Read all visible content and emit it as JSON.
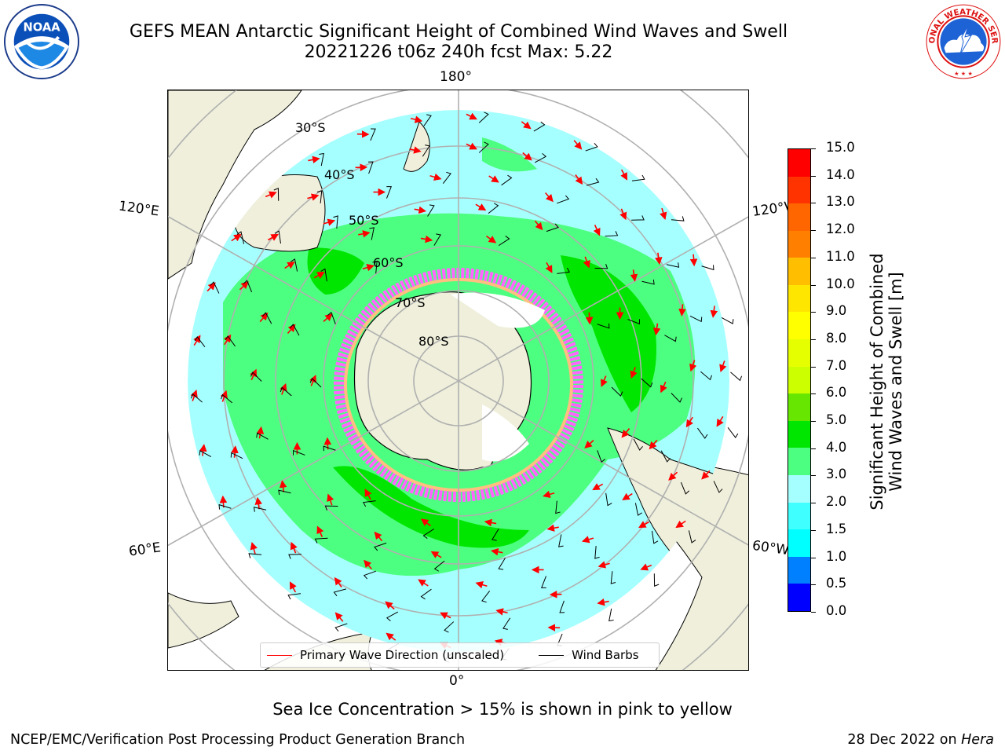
{
  "header": {
    "title_line1": "GEFS MEAN Antarctic Significant Height of Combined Wind Waves and Swell",
    "title_line2": "20221226 t06z 240h fcst   Max: 5.22"
  },
  "logos": {
    "left": {
      "name": "noaa-logo",
      "text": "NOAA",
      "ring_text": "NATIONAL OCEANIC AND ATMOSPHERIC ADMINISTRATION · U.S. DEPARTMENT OF COMMERCE"
    },
    "right": {
      "name": "nws-logo",
      "ring_text": "NATIONAL WEATHER SERVICE"
    }
  },
  "map": {
    "projection": "south-polar-stereographic",
    "longitude_labels": {
      "top": "180°",
      "bottom": "0°",
      "upper_left": "120°E",
      "upper_right": "120°W",
      "lower_left": "60°E",
      "lower_right": "60°W"
    },
    "latitude_labels": [
      "30°S",
      "40°S",
      "50°S",
      "60°S",
      "70°S",
      "80°S"
    ],
    "colors": {
      "land": "#efefdb",
      "ocean_low": "#a6ffff",
      "ocean_mid": "#4dff80",
      "ocean_high": "#00e600",
      "sea_ice": "#ff66ff",
      "grid": "#b0b0b0",
      "arrows": "#ff0000",
      "barbs": "#000000"
    }
  },
  "legend": {
    "items": [
      {
        "label": "Primary Wave Direction (unscaled)",
        "color": "#ff0000"
      },
      {
        "label": "Wind Barbs",
        "color": "#000000"
      }
    ]
  },
  "colorbar": {
    "label_line1": "Significant Height of Combined",
    "label_line2": "Wind Waves and Swell [m]",
    "ticks": [
      "0.0",
      "0.5",
      "1.0",
      "1.5",
      "2.0",
      "3.0",
      "4.0",
      "5.0",
      "6.0",
      "7.0",
      "8.0",
      "9.0",
      "10.0",
      "11.0",
      "12.0",
      "13.0",
      "14.0",
      "15.0"
    ],
    "colors": [
      "#0000ff",
      "#0080ff",
      "#00ffff",
      "#40ffff",
      "#a6ffff",
      "#4dff80",
      "#00e600",
      "#66e600",
      "#ccff00",
      "#e6ff00",
      "#ffff00",
      "#ffe600",
      "#ffbf00",
      "#ff8000",
      "#ff6600",
      "#ff3300",
      "#ff0000"
    ]
  },
  "chart_data": {
    "type": "heatmap",
    "title": "GEFS MEAN Antarctic Significant Height of Combined Wind Waves and Swell",
    "subtitle": "20221226 t06z 240h fcst   Max: 5.22",
    "max": 5.22,
    "colorbar_range": [
      0.0,
      15.0
    ],
    "units": "m"
  },
  "footer": {
    "note": "Sea Ice Concentration > 15% is shown in pink to yellow",
    "credit": "NCEP/EMC/Verification Post Processing Product Generation Branch",
    "date": "28 Dec 2022 on",
    "host": "Hera"
  }
}
